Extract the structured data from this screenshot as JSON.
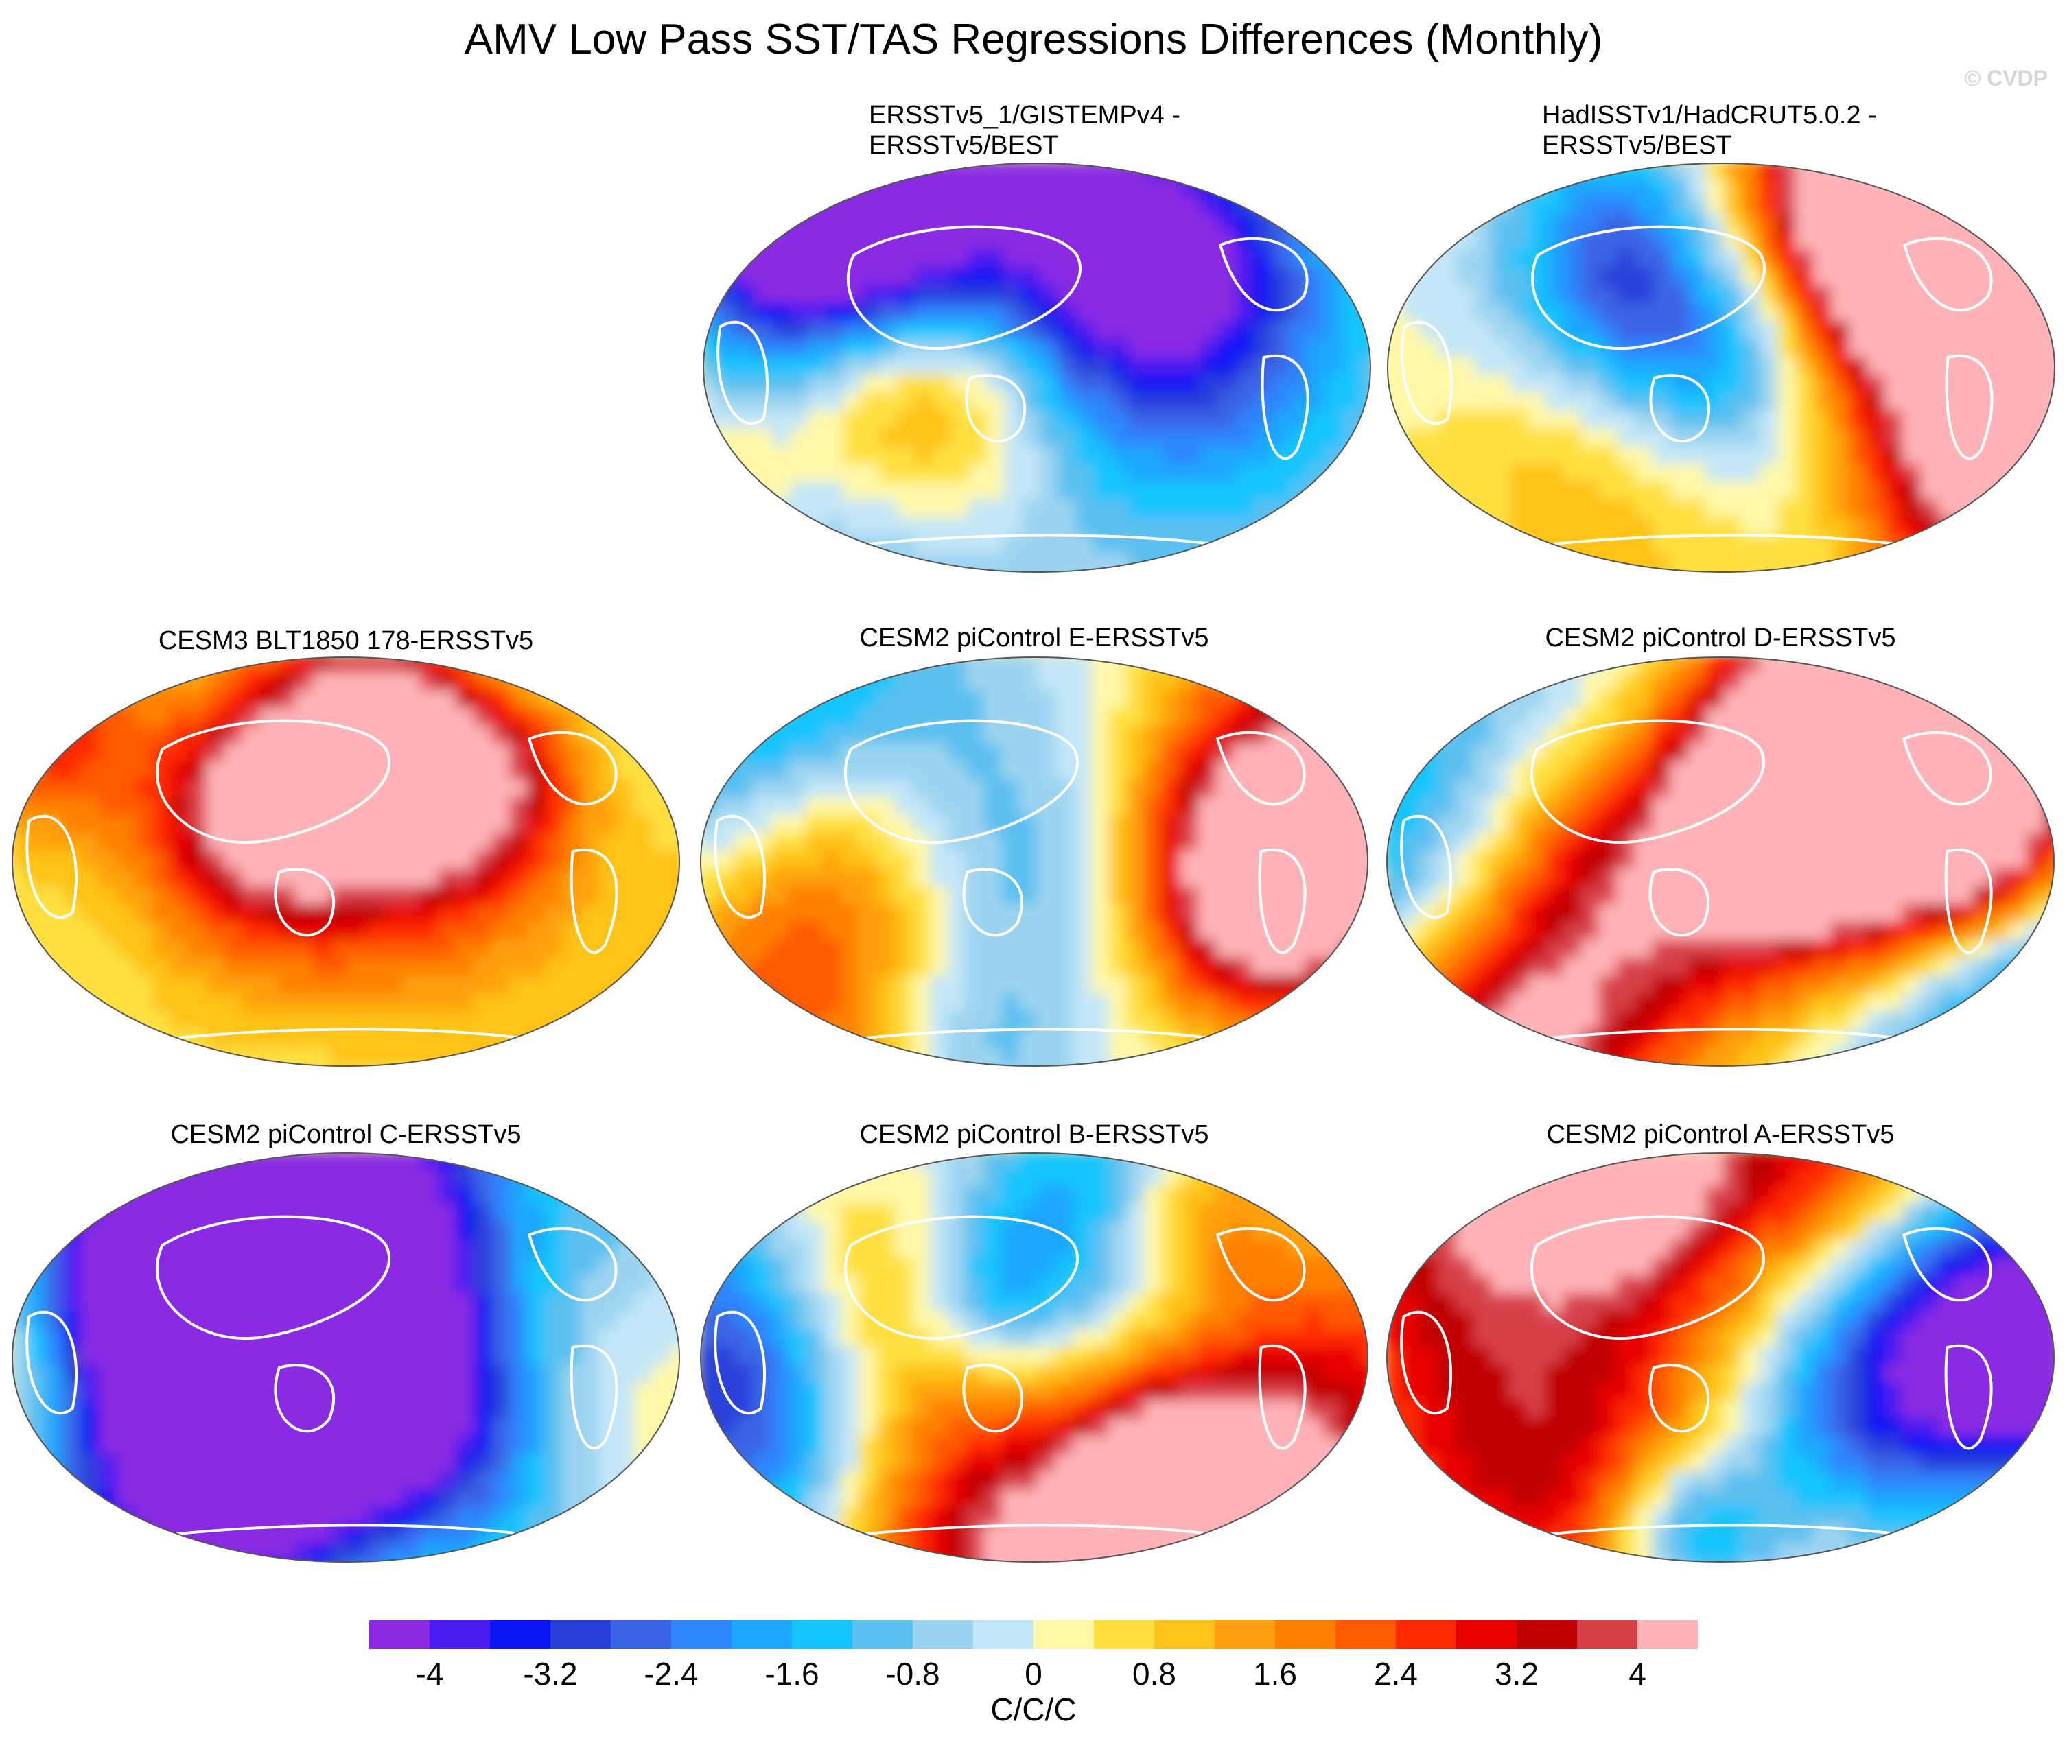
{
  "title": "AMV Low Pass SST/TAS Regressions Differences (Monthly)",
  "watermark": "© CVDP",
  "chart_data": {
    "type": "heatmap",
    "title": "AMV Low Pass SST/TAS Regressions Differences (Monthly)",
    "projection": "global map (Robinson-like)",
    "units": "C/C/C",
    "colorbar": {
      "ticks": [
        "-4",
        "-3.2",
        "-2.4",
        "-1.6",
        "-0.8",
        "0",
        "0.8",
        "1.6",
        "2.4",
        "3.2",
        "4"
      ],
      "colors": [
        "#8a2be2",
        "#4b1df0",
        "#0a14f5",
        "#2a3fd9",
        "#3a64e6",
        "#2f85ff",
        "#1ea6ff",
        "#14c4ff",
        "#5cc0f0",
        "#9cd4f0",
        "#c2e6f8",
        "#fff8a8",
        "#ffe040",
        "#ffc218",
        "#ffa010",
        "#ff8000",
        "#ff5a00",
        "#ff2a00",
        "#e80000",
        "#c00000",
        "#d84048",
        "#ffb3b8"
      ],
      "range": [
        -4.4,
        4.4
      ]
    },
    "panels": [
      {
        "title": "ERSSTv5_1/GISTEMPv4 -\nERSSTv5/BEST"
      },
      {
        "title": "HadISSTv1/HadCRUT5.0.2 -\nERSSTv5/BEST"
      },
      {
        "title": "CESM3 BLT1850 178-ERSSTv5"
      },
      {
        "title": "CESM2 piControl E-ERSSTv5"
      },
      {
        "title": "CESM2 piControl D-ERSSTv5"
      },
      {
        "title": "CESM2 piControl C-ERSSTv5"
      },
      {
        "title": "CESM2 piControl B-ERSSTv5"
      },
      {
        "title": "CESM2 piControl A-ERSSTv5"
      }
    ]
  }
}
